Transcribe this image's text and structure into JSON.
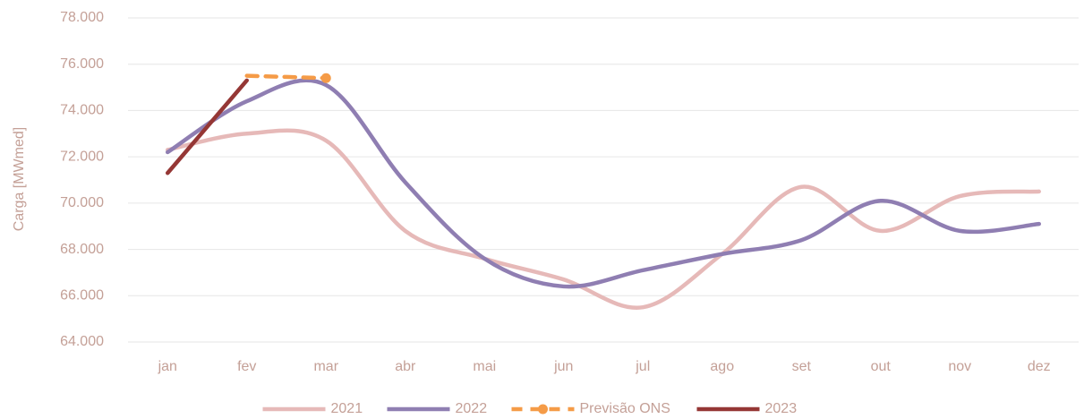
{
  "chart_data": {
    "type": "line",
    "y_label": "Carga [MWmed]",
    "categories": [
      "jan",
      "fev",
      "mar",
      "abr",
      "mai",
      "jun",
      "jul",
      "ago",
      "set",
      "out",
      "nov",
      "dez"
    ],
    "series": [
      {
        "name": "2021",
        "color": "#e6b9b8",
        "dashed": false,
        "marker": false,
        "values": [
          72300,
          73000,
          72700,
          68800,
          67600,
          66700,
          65500,
          67800,
          70700,
          68800,
          70300,
          70500
        ]
      },
      {
        "name": "2022",
        "color": "#8f7eb2",
        "dashed": false,
        "marker": false,
        "values": [
          72200,
          74400,
          75100,
          70900,
          67600,
          66400,
          67100,
          67800,
          68400,
          70100,
          68800,
          69100
        ]
      },
      {
        "name": "Previsão ONS",
        "color": "#f59b47",
        "dashed": true,
        "marker": true,
        "values": [
          null,
          75500,
          75400,
          null,
          null,
          null,
          null,
          null,
          null,
          null,
          null,
          null
        ]
      },
      {
        "name": "2023",
        "color": "#953735",
        "dashed": false,
        "marker": false,
        "values": [
          71300,
          75300,
          null,
          null,
          null,
          null,
          null,
          null,
          null,
          null,
          null,
          null
        ]
      }
    ],
    "ylim": [
      64000,
      78000
    ],
    "yticks": [
      {
        "value": 64000,
        "label": "64.000"
      },
      {
        "value": 66000,
        "label": "66.000"
      },
      {
        "value": 68000,
        "label": "68.000"
      },
      {
        "value": 70000,
        "label": "70.000"
      },
      {
        "value": 72000,
        "label": "72.000"
      },
      {
        "value": 74000,
        "label": "74.000"
      },
      {
        "value": 76000,
        "label": "76.000"
      },
      {
        "value": 78000,
        "label": "78.000"
      }
    ],
    "grid": true,
    "legend": "bottom"
  }
}
